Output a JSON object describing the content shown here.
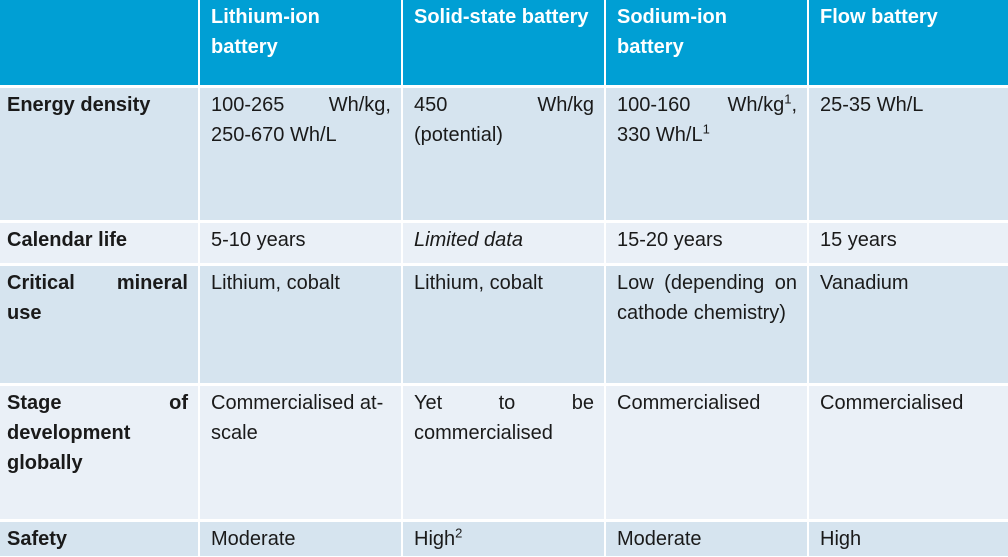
{
  "table": {
    "header": {
      "corner": "",
      "columns": [
        "Lithium-ion battery",
        "Solid-state battery",
        "Sodium-ion battery",
        "Flow battery"
      ]
    },
    "rows": [
      {
        "label": "Energy density",
        "lithium_ion": "100-265 Wh/kg, 250-670 Wh/L",
        "solid_state": "450 Wh/kg (potential)",
        "sodium_ion": {
          "part1": "100-160 Wh/kg",
          "sup1": "1",
          "part2": ", 330 Wh/L",
          "sup2": "1"
        },
        "flow": "25-35 Wh/L"
      },
      {
        "label": "Calendar life",
        "lithium_ion": "5-10 years",
        "solid_state": "Limited data",
        "sodium_ion": "15-20 years",
        "flow": "15 years"
      },
      {
        "label": "Critical mineral use",
        "lithium_ion": "Lithium, cobalt",
        "solid_state": "Lithium, cobalt",
        "sodium_ion": "Low (depending on cathode chemistry)",
        "flow": "Vanadium"
      },
      {
        "label": "Stage of development globally",
        "lithium_ion": "Commercialised at-scale",
        "solid_state": "Yet to be commercialised",
        "sodium_ion": "Commercialised",
        "flow": "Commercialised"
      },
      {
        "label": "Safety",
        "lithium_ion": "Moderate",
        "solid_state": {
          "text": "High",
          "sup": "2"
        },
        "sodium_ion": "Moderate",
        "flow": "High"
      }
    ]
  },
  "colors": {
    "header_bg": "#009fd4",
    "header_text": "#ffffff",
    "row_bg_dark": "#d6e4ef",
    "row_bg_light": "#eaf0f7"
  }
}
